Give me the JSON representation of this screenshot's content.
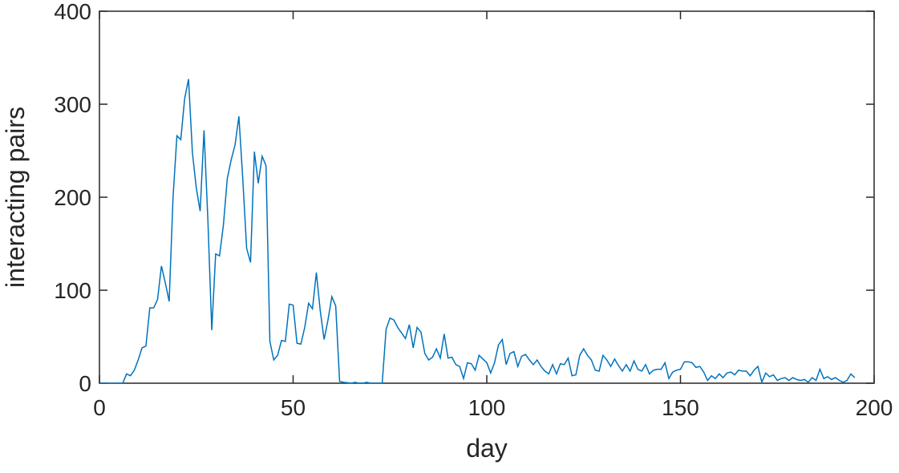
{
  "chart_data": {
    "type": "line",
    "xlabel": "day",
    "ylabel": "interacting pairs",
    "x": [
      0,
      1,
      2,
      3,
      4,
      5,
      6,
      7,
      8,
      9,
      10,
      11,
      12,
      13,
      14,
      15,
      16,
      17,
      18,
      19,
      20,
      21,
      22,
      23,
      24,
      25,
      26,
      27,
      28,
      29,
      30,
      31,
      32,
      33,
      34,
      35,
      36,
      37,
      38,
      39,
      40,
      41,
      42,
      43,
      44,
      45,
      46,
      47,
      48,
      49,
      50,
      51,
      52,
      53,
      54,
      55,
      56,
      57,
      58,
      59,
      60,
      61,
      62,
      63,
      64,
      65,
      66,
      67,
      68,
      69,
      70,
      71,
      72,
      73,
      74,
      75,
      76,
      77,
      78,
      79,
      80,
      81,
      82,
      83,
      84,
      85,
      86,
      87,
      88,
      89,
      90,
      91,
      92,
      93,
      94,
      95,
      96,
      97,
      98,
      99,
      100,
      101,
      102,
      103,
      104,
      105,
      106,
      107,
      108,
      109,
      110,
      111,
      112,
      113,
      114,
      115,
      116,
      117,
      118,
      119,
      120,
      121,
      122,
      123,
      124,
      125,
      126,
      127,
      128,
      129,
      130,
      131,
      132,
      133,
      134,
      135,
      136,
      137,
      138,
      139,
      140,
      141,
      142,
      143,
      144,
      145,
      146,
      147,
      148,
      149,
      150,
      151,
      152,
      153,
      154,
      155,
      156,
      157,
      158,
      159,
      160,
      161,
      162,
      163,
      164,
      165,
      166,
      167,
      168,
      169,
      170,
      171,
      172,
      173,
      174,
      175,
      176,
      177,
      178,
      179,
      180,
      181,
      182,
      183,
      184,
      185,
      186,
      187,
      188,
      189,
      190,
      191,
      192,
      193,
      194,
      195
    ],
    "series": [
      {
        "name": "interacting pairs",
        "color": "#0072bd",
        "values": [
          0,
          0,
          0,
          0,
          0,
          0,
          0,
          10,
          8,
          14,
          25,
          38,
          40,
          81,
          81,
          90,
          126,
          108,
          88,
          200,
          266,
          262,
          306,
          327,
          248,
          210,
          185,
          272,
          175,
          57,
          139,
          137,
          170,
          220,
          240,
          256,
          287,
          220,
          145,
          130,
          249,
          215,
          244,
          234,
          45,
          25,
          30,
          46,
          45,
          85,
          84,
          43,
          42,
          60,
          86,
          80,
          119,
          78,
          47,
          68,
          93,
          83,
          2,
          1,
          0.5,
          0,
          1,
          0,
          0,
          1,
          0,
          0,
          0,
          0,
          58,
          70,
          68,
          60,
          54,
          48,
          63,
          38,
          60,
          55,
          32,
          25,
          28,
          37,
          27,
          53,
          27,
          28,
          20,
          18,
          5,
          22,
          21,
          14,
          30,
          26,
          22,
          11,
          22,
          41,
          47,
          20,
          32,
          34,
          18,
          29,
          31,
          25,
          20,
          25,
          18,
          13,
          10,
          20,
          10,
          21,
          20,
          27,
          8,
          9,
          30,
          37,
          30,
          25,
          14,
          13,
          30,
          25,
          18,
          26,
          19,
          13,
          20,
          13,
          24,
          15,
          13,
          20,
          10,
          14,
          15,
          15,
          22,
          5,
          12,
          14,
          15,
          23,
          23,
          22,
          17,
          18,
          12,
          3,
          8,
          5,
          10,
          6,
          11,
          12,
          9,
          14,
          13,
          13,
          8,
          14,
          18,
          1,
          11,
          7,
          9,
          3,
          5,
          6,
          3,
          6,
          4,
          3,
          4,
          1,
          6,
          3,
          15,
          5,
          7,
          4,
          6,
          3,
          1,
          3,
          10,
          6
        ]
      }
    ],
    "xlim": [
      0,
      200
    ],
    "xticks": [
      0,
      50,
      100,
      150,
      200
    ],
    "ylim": [
      0,
      400
    ],
    "yticks": [
      0,
      100,
      200,
      300,
      400
    ],
    "grid": false
  }
}
